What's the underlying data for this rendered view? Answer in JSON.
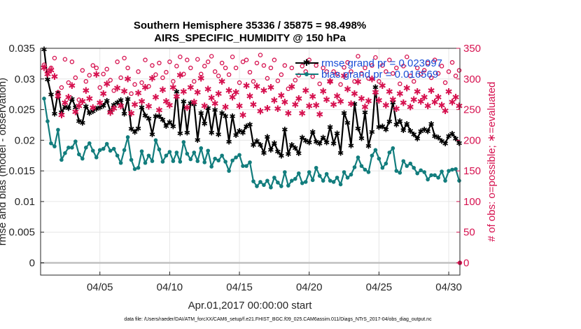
{
  "chart_data": {
    "type": "line",
    "title_line1": "Southern Hemisphere 35336 / 35875 = 98.498%",
    "title_line2": "AIRS_SPECIFIC_HUMIDITY @ 150 hPa",
    "xlabel": "Apr.01,2017 00:00:00 start",
    "ylabel": "rmse and bias (model - observation)",
    "ylabel_right": "# of obs: o=possible; ∗=evaluated",
    "xlim": [
      0.75,
      30.8
    ],
    "ylim": [
      -0.002,
      0.035
    ],
    "ylim_right": [
      -20,
      350
    ],
    "x_ticks": [
      {
        "value": 5,
        "label": "04/05"
      },
      {
        "value": 10,
        "label": "04/10"
      },
      {
        "value": 15,
        "label": "04/15"
      },
      {
        "value": 20,
        "label": "04/20"
      },
      {
        "value": 25,
        "label": "04/25"
      },
      {
        "value": 30,
        "label": "04/30"
      }
    ],
    "y_ticks": [
      {
        "value": 0,
        "label": "0"
      },
      {
        "value": 0.005,
        "label": "0.005"
      },
      {
        "value": 0.01,
        "label": "0.01"
      },
      {
        "value": 0.015,
        "label": "0.015"
      },
      {
        "value": 0.02,
        "label": "0.02"
      },
      {
        "value": 0.025,
        "label": "0.025"
      },
      {
        "value": 0.03,
        "label": "0.03"
      },
      {
        "value": 0.035,
        "label": "0.035"
      }
    ],
    "y_ticks_right": [
      {
        "value": 0,
        "label": "0"
      },
      {
        "value": 50,
        "label": "50"
      },
      {
        "value": 100,
        "label": "100"
      },
      {
        "value": 150,
        "label": "150"
      },
      {
        "value": 200,
        "label": "200"
      },
      {
        "value": 250,
        "label": "250"
      },
      {
        "value": 300,
        "label": "300"
      },
      {
        "value": 350,
        "label": "350"
      }
    ],
    "x_start": 1.0,
    "x_step": 0.25,
    "series": [
      {
        "name": "rmse grand pr = 0.023097",
        "color": "#000000",
        "marker": "star",
        "axis": "left",
        "values": [
          0.0349,
          0.03,
          0.0275,
          0.0244,
          0.0278,
          0.0246,
          0.0255,
          0.0253,
          0.0268,
          0.0254,
          0.0232,
          0.0229,
          0.0256,
          0.0245,
          0.0248,
          0.0252,
          0.0254,
          0.0257,
          0.0265,
          0.0247,
          0.0258,
          0.0262,
          0.0266,
          0.0244,
          0.0268,
          0.0219,
          0.0214,
          0.022,
          0.0254,
          0.0241,
          0.0236,
          0.021,
          0.024,
          0.024,
          0.0234,
          0.0224,
          0.023,
          0.0223,
          0.028,
          0.0212,
          0.0264,
          0.0213,
          0.0261,
          0.0259,
          0.0201,
          0.0245,
          0.0228,
          0.0253,
          0.0213,
          0.025,
          0.021,
          0.0245,
          0.024,
          0.0198,
          0.024,
          0.0209,
          0.0216,
          0.0213,
          0.0223,
          0.0226,
          0.0193,
          0.0199,
          0.0193,
          0.018,
          0.0206,
          0.0185,
          0.0196,
          0.0182,
          0.0175,
          0.0218,
          0.0178,
          0.0193,
          0.0188,
          0.0179,
          0.0205,
          0.02,
          0.0197,
          0.0214,
          0.0198,
          0.0195,
          0.0205,
          0.0197,
          0.0222,
          0.0195,
          0.0212,
          0.018,
          0.0245,
          0.0229,
          0.0192,
          0.026,
          0.022,
          0.0204,
          0.0246,
          0.0191,
          0.0214,
          0.0287,
          0.0222,
          0.0223,
          0.0218,
          0.0231,
          0.0262,
          0.0226,
          0.0232,
          0.0217,
          0.0227,
          0.0216,
          0.021,
          0.0203,
          0.0215,
          0.0218,
          0.0215,
          0.0227,
          0.0207,
          0.0205,
          0.0199,
          0.0195,
          0.0207,
          0.0211,
          0.0203,
          0.0196
        ]
      },
      {
        "name": "bias grand pr = 0.016569",
        "color": "#127d7d",
        "marker": "circle",
        "axis": "left",
        "values": [
          0.0268,
          0.0231,
          0.0195,
          0.019,
          0.0217,
          0.0168,
          0.0179,
          0.0188,
          0.0188,
          0.0198,
          0.0177,
          0.017,
          0.0188,
          0.0195,
          0.0183,
          0.0172,
          0.0184,
          0.0186,
          0.0194,
          0.0183,
          0.0186,
          0.0175,
          0.0163,
          0.0184,
          0.0205,
          0.0168,
          0.0153,
          0.0155,
          0.0182,
          0.0163,
          0.0175,
          0.0166,
          0.02,
          0.0185,
          0.0165,
          0.0175,
          0.0181,
          0.0166,
          0.018,
          0.0165,
          0.0197,
          0.0178,
          0.0169,
          0.018,
          0.0166,
          0.0187,
          0.0164,
          0.0183,
          0.0157,
          0.017,
          0.0167,
          0.0175,
          0.0165,
          0.015,
          0.0167,
          0.0172,
          0.0176,
          0.0158,
          0.0158,
          0.0164,
          0.0133,
          0.0125,
          0.0132,
          0.0127,
          0.0134,
          0.0123,
          0.0139,
          0.0131,
          0.0125,
          0.0148,
          0.0126,
          0.0134,
          0.0137,
          0.0146,
          0.013,
          0.0132,
          0.0148,
          0.0135,
          0.0155,
          0.0142,
          0.0134,
          0.0145,
          0.0134,
          0.0132,
          0.0139,
          0.0128,
          0.0148,
          0.0139,
          0.0144,
          0.0156,
          0.0172,
          0.0158,
          0.0152,
          0.0148,
          0.0175,
          0.0184,
          0.017,
          0.0155,
          0.0162,
          0.018,
          0.0187,
          0.015,
          0.0147,
          0.0166,
          0.0158,
          0.0162,
          0.0155,
          0.0146,
          0.0151,
          0.0148,
          0.0136,
          0.0143,
          0.0143,
          0.0139,
          0.0149,
          0.0134,
          0.015,
          0.0152,
          0.0153,
          0.0134
        ]
      },
      {
        "name": "possible obs",
        "color": "#d6114f",
        "marker": "open-circle",
        "axis": "right",
        "values": [
          323,
          312,
          318,
          334,
          278,
          286,
          332,
          294,
          328,
          302,
          266,
          314,
          296,
          306,
          322,
          318,
          286,
          308,
          316,
          298,
          281,
          328,
          302,
          334,
          318,
          276,
          291,
          312,
          294,
          331,
          288,
          322,
          307,
          326,
          302,
          311,
          328,
          296,
          321,
          336,
          308,
          331,
          318,
          296,
          332,
          308,
          321,
          328,
          337,
          312,
          305,
          326,
          318,
          307,
          336,
          318,
          294,
          328,
          331,
          311,
          296,
          326,
          339,
          322,
          301,
          318,
          331,
          297,
          307,
          322,
          284,
          318,
          298,
          306,
          321,
          312,
          331,
          304,
          322,
          292,
          318,
          312,
          296,
          312,
          308,
          291,
          319,
          327,
          312,
          296,
          337,
          309,
          318,
          301,
          322,
          335,
          296,
          322,
          312,
          331,
          309,
          318,
          292,
          321,
          336,
          305,
          296,
          318,
          308,
          314,
          326,
          302,
          331,
          309,
          321,
          294,
          312,
          327,
          305,
          314
        ]
      },
      {
        "name": "evaluated obs",
        "color": "#d6114f",
        "marker": "asterisk",
        "axis": "right",
        "values": [
          318,
          308,
          314,
          304,
          272,
          241,
          261,
          270,
          289,
          246,
          256,
          263,
          281,
          268,
          253,
          307,
          261,
          276,
          292,
          245,
          252,
          285,
          256,
          280,
          300,
          244,
          258,
          277,
          263,
          286,
          255,
          301,
          270,
          249,
          282,
          263,
          257,
          286,
          271,
          306,
          279,
          253,
          286,
          262,
          278,
          301,
          256,
          283,
          269,
          260,
          276,
          296,
          254,
          281,
          270,
          278,
          256,
          241,
          289,
          272,
          258,
          288,
          247,
          281,
          252,
          286,
          265,
          251,
          273,
          262,
          244,
          287,
          258,
          268,
          244,
          281,
          256,
          271,
          257,
          242,
          280,
          266,
          296,
          258,
          272,
          263,
          305,
          283,
          259,
          276,
          295,
          268,
          254,
          264,
          300,
          278,
          265,
          289,
          257,
          279,
          266,
          251,
          276,
          261,
          285,
          254,
          266,
          279,
          263,
          270,
          256,
          281,
          262,
          270,
          257,
          248,
          279,
          262,
          270,
          256
        ]
      }
    ],
    "legend_position": "top-right"
  },
  "footer_text": "data file: /Users/raeder/DAI/ATM_forcXX/CAM6_setup/f.e21.FHIST_BGC.f09_025.CAM6assim.011/Diags_NTrS_2017-04/obs_diag_output.nc"
}
